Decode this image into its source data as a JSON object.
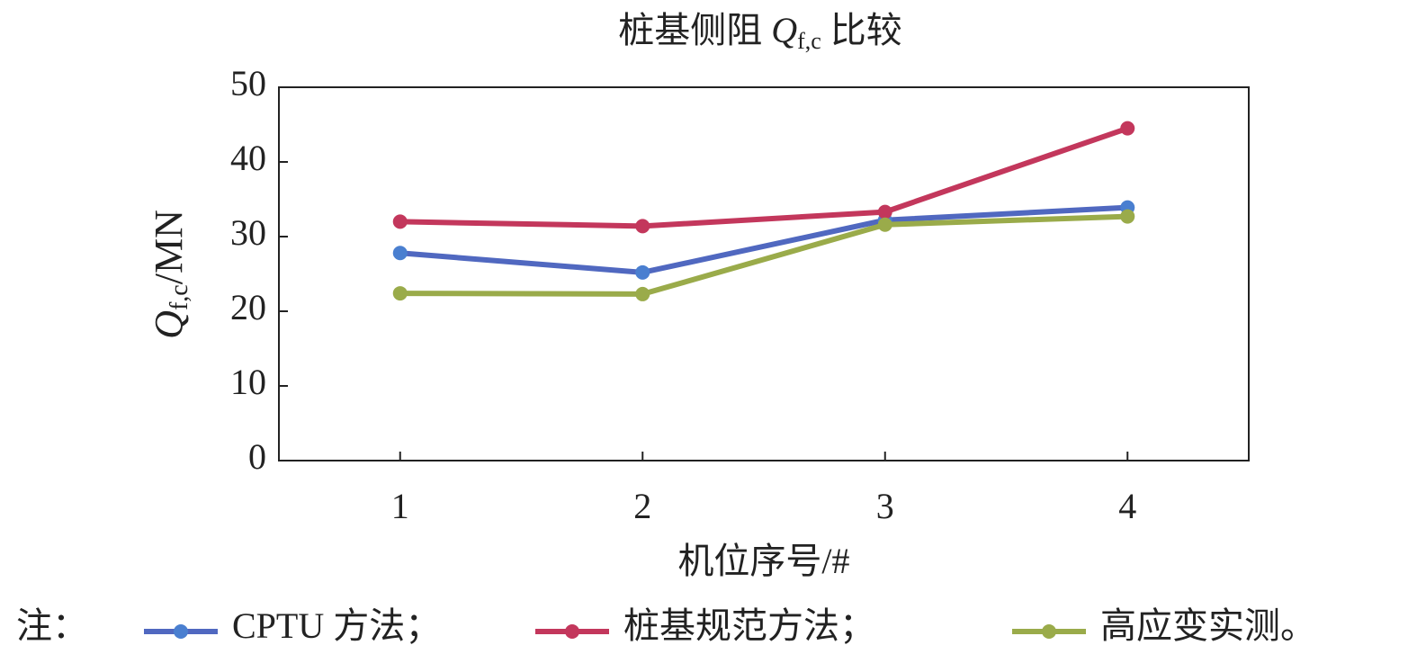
{
  "chart_data": {
    "type": "line",
    "title": {
      "text": "桩基侧阻",
      "symbol": "Q",
      "subscript": "f,c",
      "suffix": "比较"
    },
    "y_label": {
      "symbol": "Q",
      "subscript": "f,c",
      "unit": "/MN"
    },
    "x_label": "机位序号/#",
    "legend_note": "注：",
    "categories": [
      "1",
      "2",
      "3",
      "4"
    ],
    "series": [
      {
        "name": "CPTU 方法；",
        "color": "#5068c0",
        "marker_color": "#4a7fd0",
        "values": [
          27.8,
          25.2,
          32.2,
          33.9
        ]
      },
      {
        "name": "桩基规范方法；",
        "color": "#c3375c",
        "marker_color": "#c3375c",
        "values": [
          32.0,
          31.4,
          33.3,
          44.5
        ]
      },
      {
        "name": "高应变实测。",
        "color": "#9aab4a",
        "marker_color": "#9aab4a",
        "values": [
          22.4,
          22.3,
          31.6,
          32.7
        ]
      }
    ],
    "ylim": [
      0,
      50
    ],
    "yticks": [
      0,
      10,
      20,
      30,
      40,
      50
    ]
  }
}
